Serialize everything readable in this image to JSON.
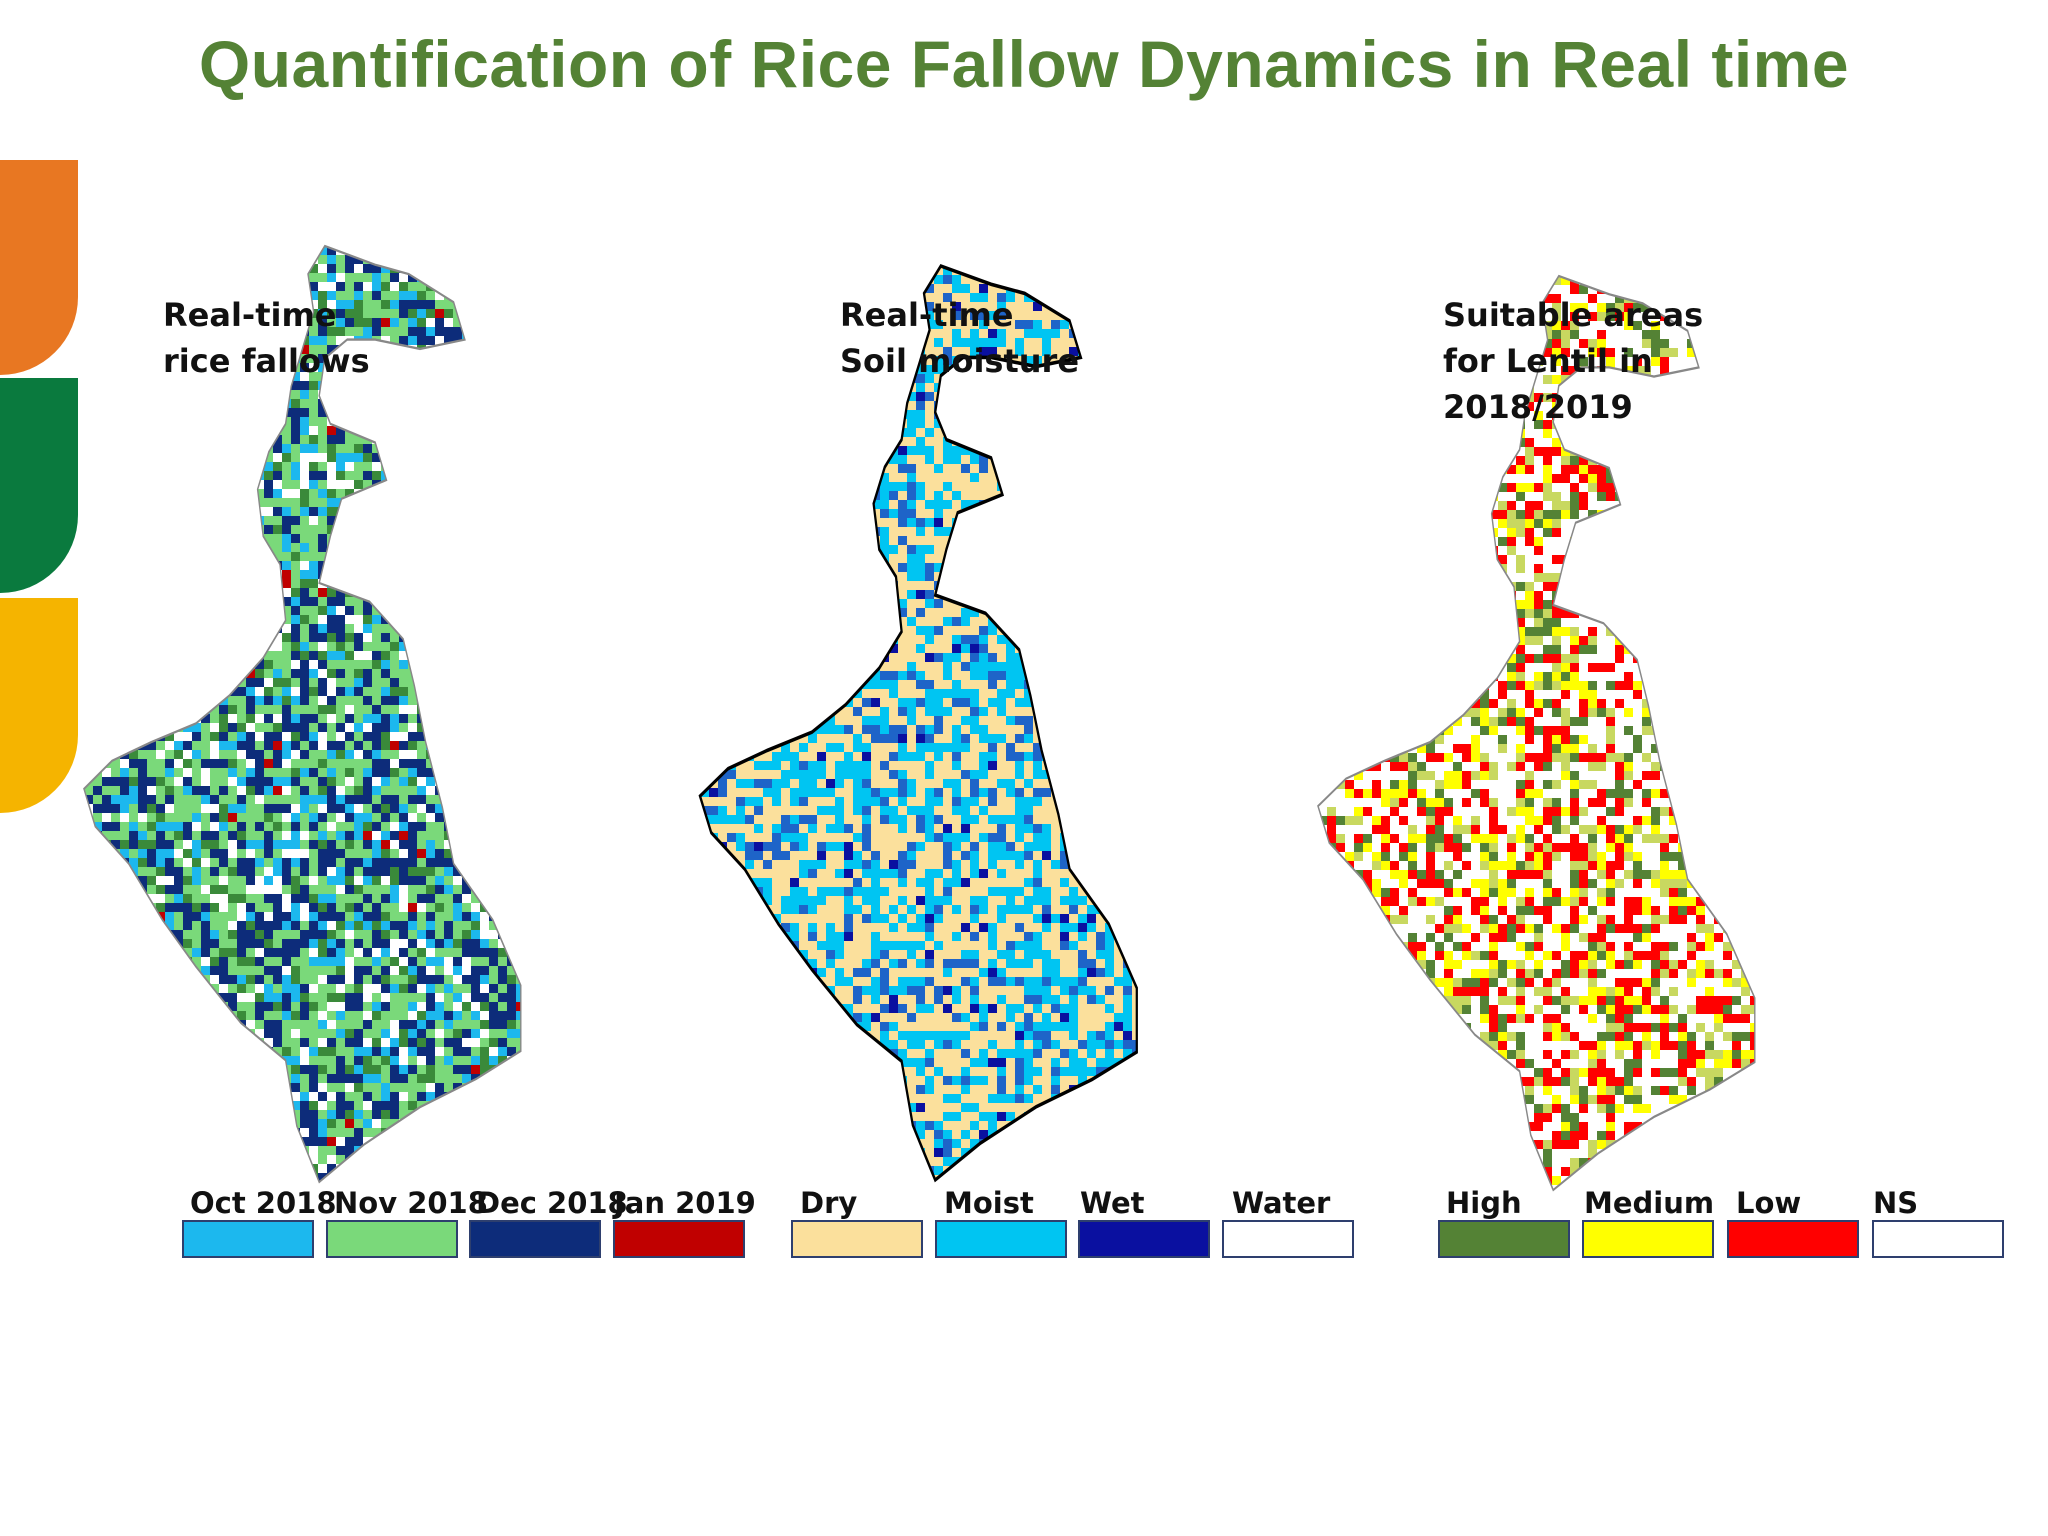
{
  "slide": {
    "title": "Quantification of Rice Fallow Dynamics in Real time",
    "title_color": "#548235",
    "accent_colors": [
      "#e87722",
      "#0a7a3e",
      "#f5b400"
    ]
  },
  "maps": [
    {
      "label_lines": [
        "Real-time",
        "rice fallows"
      ],
      "legend": [
        {
          "label": "Oct 2018",
          "color": "#1cb8ee"
        },
        {
          "label": "Nov 2018",
          "color": "#7ad97a"
        },
        {
          "label": "Dec 2018",
          "color": "#0d2c7a"
        },
        {
          "label": "Jan 2019",
          "color": "#c00000"
        }
      ]
    },
    {
      "label_lines": [
        "Real-time",
        "Soil moisture"
      ],
      "legend": [
        {
          "label": "Dry",
          "color": "#fbe09c"
        },
        {
          "label": "Moist",
          "color": "#00c5f2"
        },
        {
          "label": "Wet",
          "color": "#0a10a0"
        },
        {
          "label": "Water",
          "color": "#ffffff"
        }
      ]
    },
    {
      "label_lines": [
        "Suitable areas",
        "for Lentil in",
        "2018/2019"
      ],
      "legend": [
        {
          "label": "High",
          "color": "#548235"
        },
        {
          "label": "Medium",
          "color": "#ffff00"
        },
        {
          "label": "Low",
          "color": "#ff0000"
        },
        {
          "label": "NS",
          "color": "#ffffff"
        }
      ]
    }
  ]
}
